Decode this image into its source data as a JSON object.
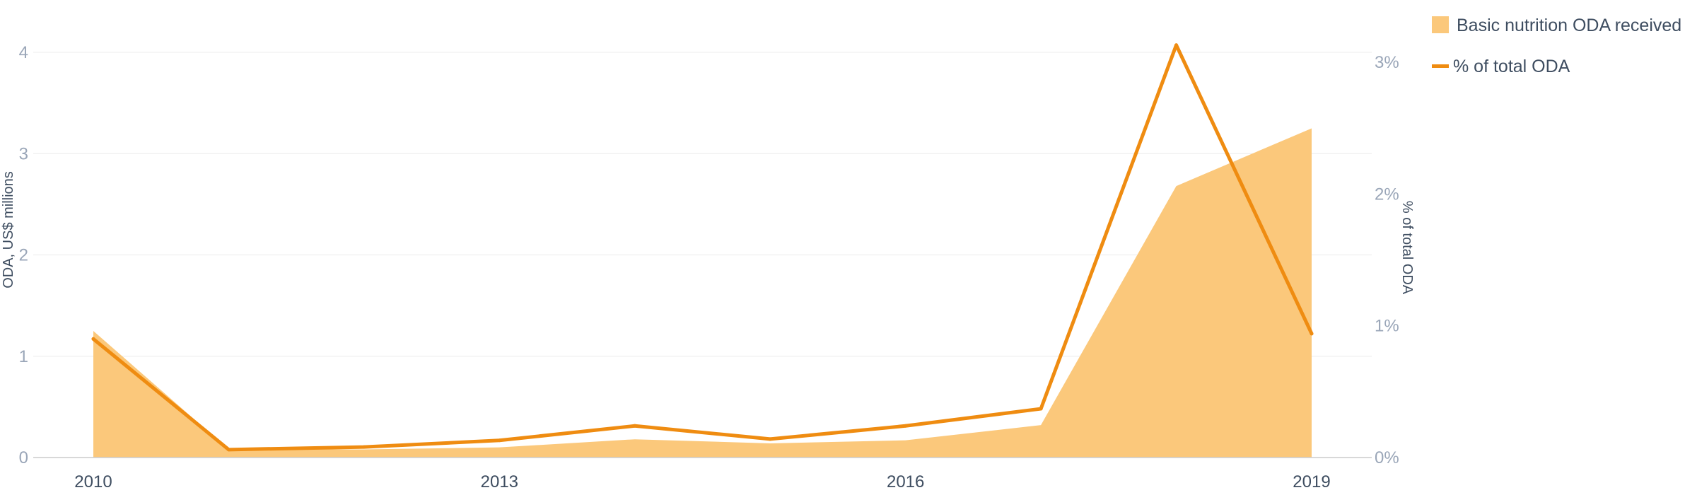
{
  "chart_data": {
    "type": "area",
    "x": [
      2010,
      2011,
      2012,
      2013,
      2014,
      2015,
      2016,
      2017,
      2018,
      2019
    ],
    "x_tick_labels": [
      "2010",
      "2013",
      "2016",
      "2019"
    ],
    "x_tick_values": [
      2010,
      2013,
      2016,
      2019
    ],
    "series": [
      {
        "name": "Basic nutrition ODA received",
        "type": "area",
        "axis": "left",
        "color": "#fbc87b",
        "values": [
          1.25,
          0.08,
          0.08,
          0.1,
          0.18,
          0.14,
          0.17,
          0.32,
          2.68,
          3.25
        ]
      },
      {
        "name": "% of total ODA",
        "type": "line",
        "axis": "right",
        "color": "#ef8c11",
        "values": [
          0.9,
          0.06,
          0.08,
          0.13,
          0.24,
          0.14,
          0.24,
          0.37,
          3.13,
          0.94
        ]
      }
    ],
    "y_left": {
      "label": "ODA, US$ millions",
      "range": [
        0,
        4
      ],
      "tick_values": [
        0,
        1,
        2,
        3,
        4
      ],
      "tick_labels": [
        "0",
        "1",
        "2",
        "3",
        "4"
      ]
    },
    "y_right": {
      "label": "% of total ODA",
      "range": [
        0,
        3
      ],
      "tick_values": [
        0,
        1,
        2,
        3
      ],
      "tick_labels": [
        "0%",
        "1%",
        "2%",
        "3%"
      ]
    },
    "grid": true,
    "legend_placement": "top-right",
    "colors": {
      "grid": "#ececec",
      "axis": "#cccccc",
      "tick_text": "#9aa6b8",
      "label_text": "#3e4d60"
    }
  }
}
